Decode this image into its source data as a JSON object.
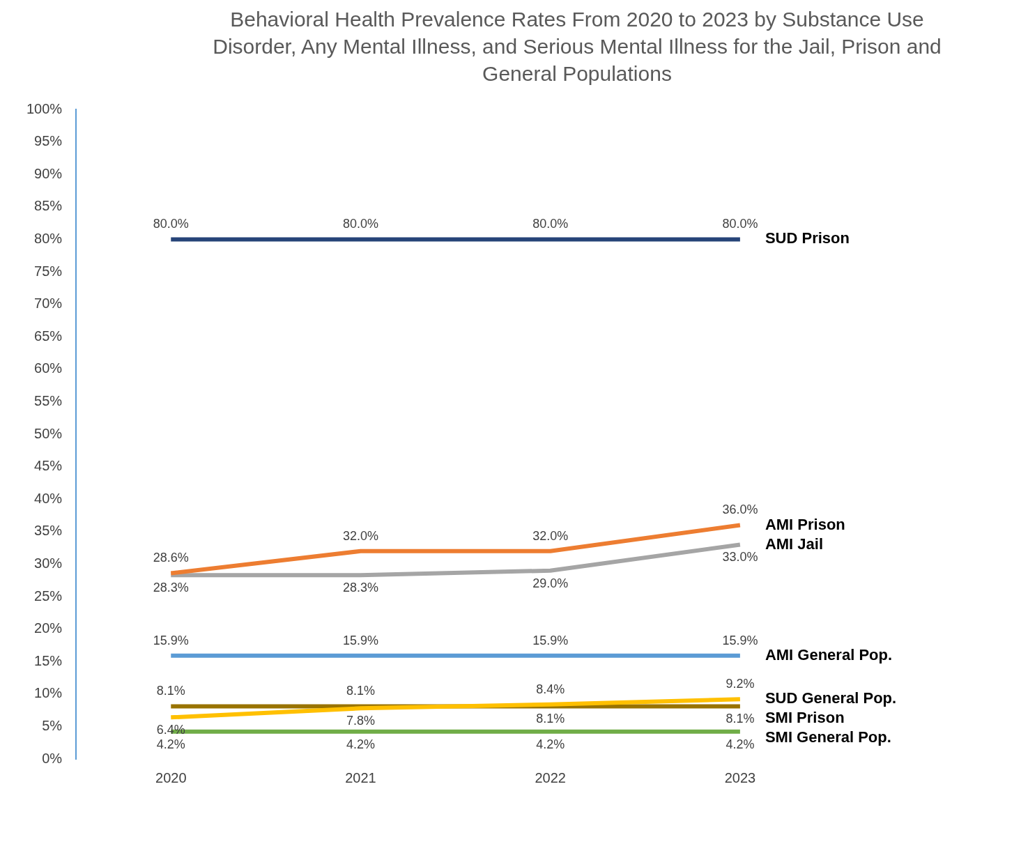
{
  "chart_data": {
    "type": "line",
    "title": "Behavioral Health Prevalence Rates From 2020 to 2023 by Substance Use Disorder, Any Mental Illness, and Serious Mental Illness for the Jail, Prison and General Populations",
    "categories": [
      "2020",
      "2021",
      "2022",
      "2023"
    ],
    "ylim": [
      0,
      100
    ],
    "yticks": [
      {
        "value": 0,
        "label": "0%"
      },
      {
        "value": 5,
        "label": "5%"
      },
      {
        "value": 10,
        "label": "10%"
      },
      {
        "value": 15,
        "label": "15%"
      },
      {
        "value": 20,
        "label": "20%"
      },
      {
        "value": 25,
        "label": "25%"
      },
      {
        "value": 30,
        "label": "30%"
      },
      {
        "value": 35,
        "label": "35%"
      },
      {
        "value": 40,
        "label": "40%"
      },
      {
        "value": 45,
        "label": "45%"
      },
      {
        "value": 50,
        "label": "50%"
      },
      {
        "value": 55,
        "label": "55%"
      },
      {
        "value": 60,
        "label": "60%"
      },
      {
        "value": 65,
        "label": "65%"
      },
      {
        "value": 70,
        "label": "70%"
      },
      {
        "value": 75,
        "label": "75%"
      },
      {
        "value": 80,
        "label": "80%"
      },
      {
        "value": 85,
        "label": "85%"
      },
      {
        "value": 90,
        "label": "90%"
      },
      {
        "value": 95,
        "label": "95%"
      },
      {
        "value": 100,
        "label": "100%"
      }
    ],
    "grid": false,
    "legend": false,
    "marker": "none",
    "line_style": "solid",
    "series": [
      {
        "name": "SUD Prison",
        "color": "#264478",
        "values": [
          80,
          80,
          80,
          80
        ],
        "value_labels": [
          "80.0%",
          "80.0%",
          "80.0%",
          "80.0%"
        ]
      },
      {
        "name": "AMI Prison",
        "color": "#ed7d31",
        "values": [
          28.6,
          32,
          32,
          36
        ],
        "value_labels": [
          "28.6%",
          "32.0%",
          "32.0%",
          "36.0%"
        ]
      },
      {
        "name": "AMI Jail",
        "color": "#a5a5a5",
        "values": [
          28.3,
          28.3,
          29,
          33
        ],
        "value_labels": [
          "28.3%",
          "28.3%",
          "29.0%",
          "33.0%"
        ]
      },
      {
        "name": "AMI General Pop.",
        "color": "#5b9bd5",
        "values": [
          15.9,
          15.9,
          15.9,
          15.9
        ],
        "value_labels": [
          "15.9%",
          "15.9%",
          "15.9%",
          "15.9%"
        ]
      },
      {
        "name": "SUD General Pop.",
        "color": "#ffc000",
        "values": [
          6.4,
          7.8,
          8.4,
          9.2
        ],
        "value_labels": [
          "6.4%",
          "7.8%",
          "8.4%",
          "9.2%"
        ]
      },
      {
        "name": "SMI Prison",
        "color": "#997300",
        "values": [
          8.1,
          8.1,
          8.1,
          8.1
        ],
        "value_labels": [
          "8.1%",
          "8.1%",
          "8.1%",
          "8.1%"
        ]
      },
      {
        "name": "SMI General Pop.",
        "color": "#70ad47",
        "values": [
          4.2,
          4.2,
          4.2,
          4.2
        ],
        "value_labels": [
          "4.2%",
          "4.2%",
          "4.2%",
          "4.2%"
        ]
      }
    ]
  }
}
